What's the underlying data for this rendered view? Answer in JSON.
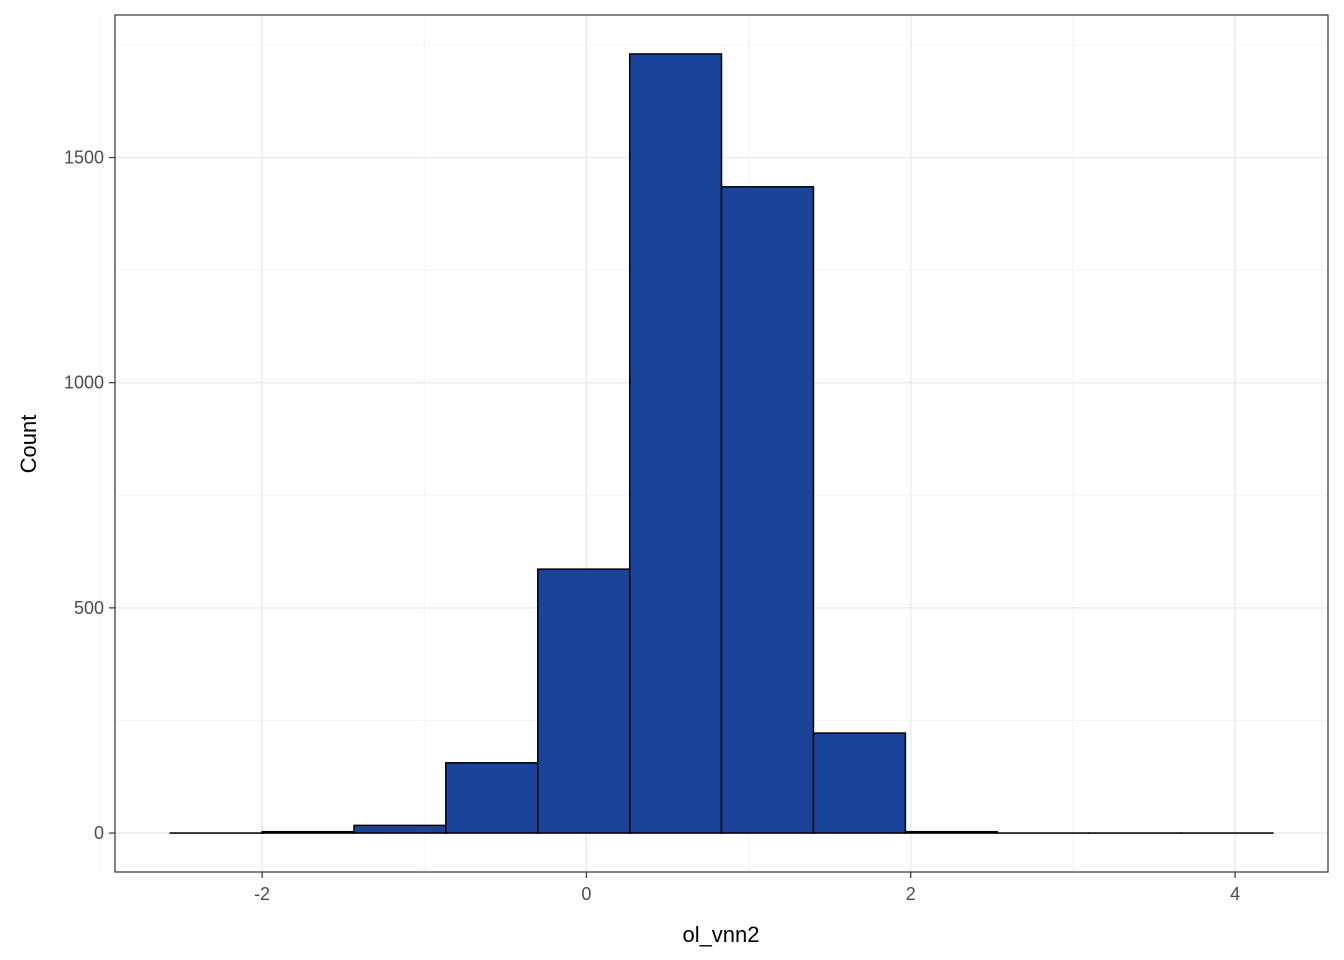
{
  "chart_data": {
    "type": "bar",
    "subtype": "histogram",
    "title": "",
    "xlabel": "ol_vnn2",
    "ylabel": "Count",
    "bin_width": 0.5666,
    "bins": [
      {
        "x0": -2.567,
        "x1": -2.0,
        "count": 0
      },
      {
        "x0": -2.0,
        "x1": -1.433,
        "count": 3
      },
      {
        "x0": -1.433,
        "x1": -0.867,
        "count": 17
      },
      {
        "x0": -0.867,
        "x1": -0.3,
        "count": 156
      },
      {
        "x0": -0.3,
        "x1": 0.267,
        "count": 586
      },
      {
        "x0": 0.267,
        "x1": 0.833,
        "count": 1730
      },
      {
        "x0": 0.833,
        "x1": 1.4,
        "count": 1435
      },
      {
        "x0": 1.4,
        "x1": 1.967,
        "count": 222
      },
      {
        "x0": 1.967,
        "x1": 2.533,
        "count": 3
      },
      {
        "x0": 2.533,
        "x1": 3.1,
        "count": 0
      },
      {
        "x0": 3.1,
        "x1": 3.667,
        "count": 0
      },
      {
        "x0": 3.667,
        "x1": 4.233,
        "count": 0
      }
    ],
    "xlim": [
      -2.907,
      4.573
    ],
    "ylim": [
      -86.5,
      1816.5
    ],
    "xticks": [
      -2,
      0,
      2,
      4
    ],
    "xtick_labels": [
      "-2",
      "0",
      "2",
      "4"
    ],
    "yticks": [
      0,
      500,
      1000,
      1500
    ],
    "ytick_labels": [
      "0",
      "500",
      "1000",
      "1500"
    ],
    "x_minor_gridlines": [
      -3,
      -1,
      1,
      3
    ],
    "y_minor_gridlines": [
      250,
      750,
      1250,
      1750
    ],
    "grid": true,
    "legend": "none",
    "colors": {
      "bar_fill": "#1A449A",
      "bar_outline": "#000000",
      "panel_border": "#333333",
      "grid_major": "#EBEBEB",
      "grid_minor": "#F4F4F4",
      "tick_label": "#4D4D4D"
    }
  }
}
